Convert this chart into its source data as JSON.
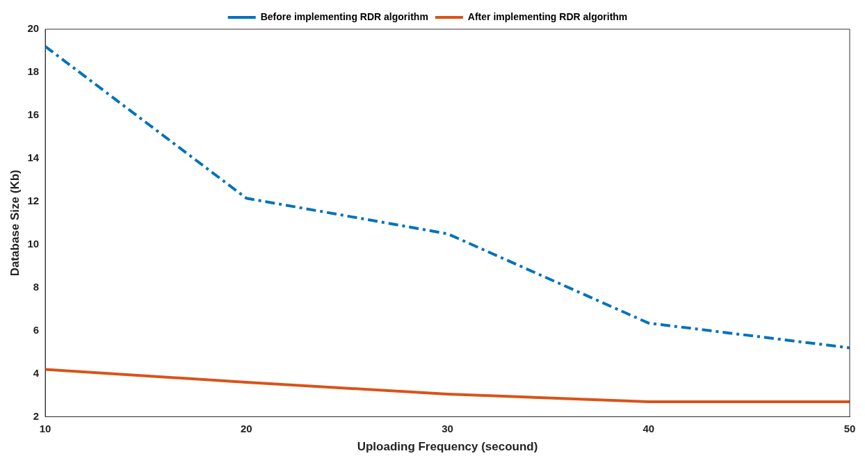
{
  "chart_data": {
    "type": "line",
    "xlabel": "Uploading Frequency (secound)",
    "ylabel": "Database Size (Kb)",
    "x": [
      10,
      20,
      30,
      40,
      50
    ],
    "series": [
      {
        "name": "Before implementing RDR algorithm",
        "color": "#0072bd",
        "line_style": "dashed",
        "values": [
          19.2,
          12.15,
          10.5,
          6.35,
          5.2
        ]
      },
      {
        "name": "After implementing RDR algorithm",
        "color": "#d95319",
        "line_style": "solid",
        "values": [
          4.2,
          3.6,
          3.05,
          2.7,
          2.7
        ]
      }
    ],
    "xlim": [
      10,
      50
    ],
    "xticks": [
      10,
      20,
      30,
      40,
      50
    ],
    "ylim": [
      2,
      20
    ],
    "yticks": [
      2,
      4,
      6,
      8,
      10,
      12,
      14,
      16,
      18,
      20
    ],
    "grid": false,
    "legend": "top",
    "marker": "none"
  }
}
